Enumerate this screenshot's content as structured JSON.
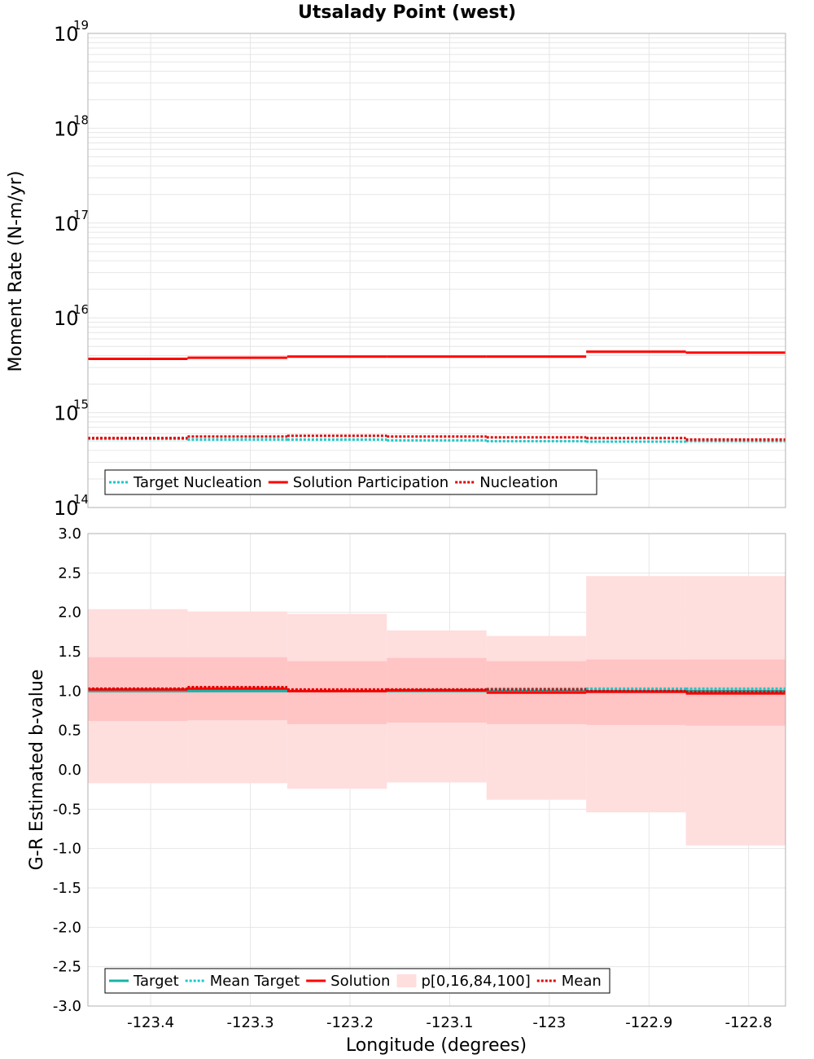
{
  "title": "Utsalady Point (west)",
  "colors": {
    "target": "#17b3a8",
    "mean_target": "#1ec8c8",
    "solution": "#ff0000",
    "mean": "#e00000",
    "band_outer": "#ffdede",
    "band_inner": "#ffc4c4",
    "grid": "#e6e6e6",
    "frame": "#b0b0b0"
  },
  "chart_data": [
    {
      "type": "line",
      "step": true,
      "ylabel": "Moment Rate (N-m/yr)",
      "yscale": "log",
      "ylim": [
        100000000000000.0,
        1e+19
      ],
      "yticks": [
        {
          "base": "10",
          "exp": "14"
        },
        {
          "base": "10",
          "exp": "15"
        },
        {
          "base": "10",
          "exp": "16"
        },
        {
          "base": "10",
          "exp": "17"
        },
        {
          "base": "10",
          "exp": "18"
        },
        {
          "base": "10",
          "exp": "19"
        }
      ],
      "bin_edges": [
        -123.463,
        -123.363,
        -123.263,
        -123.163,
        -123.063,
        -122.963,
        -122.863,
        -122.763
      ],
      "series": [
        {
          "name": "Target Nucleation",
          "style": "dotted",
          "color_key": "mean_target",
          "values": [
            530000000000000.0,
            520000000000000.0,
            520000000000000.0,
            510000000000000.0,
            500000000000000.0,
            495000000000000.0,
            500000000000000.0
          ]
        },
        {
          "name": "Solution Participation",
          "style": "solid",
          "color_key": "solution",
          "values": [
            3700000000000000.0,
            3800000000000000.0,
            3900000000000000.0,
            3900000000000000.0,
            3900000000000000.0,
            4400000000000000.0,
            4300000000000000.0
          ]
        },
        {
          "name": "Nucleation",
          "style": "dotted",
          "color_key": "mean",
          "values": [
            540000000000000.0,
            560000000000000.0,
            570000000000000.0,
            560000000000000.0,
            550000000000000.0,
            540000000000000.0,
            520000000000000.0
          ]
        }
      ],
      "legend": {
        "position": "bottom-left",
        "entries": [
          {
            "label": "Target Nucleation",
            "style": "dotted",
            "color_key": "mean_target"
          },
          {
            "label": "Solution Participation",
            "style": "solid",
            "color_key": "solution"
          },
          {
            "label": "Nucleation",
            "style": "dotted",
            "color_key": "mean"
          }
        ]
      }
    },
    {
      "type": "line",
      "step": true,
      "xlabel": "Longitude (degrees)",
      "ylabel": "G-R Estimated b-value",
      "ylim": [
        -3.0,
        3.0
      ],
      "yticks": [
        "-3.0",
        "-2.5",
        "-2.0",
        "-1.5",
        "-1.0",
        "-0.5",
        "0.0",
        "0.5",
        "1.0",
        "1.5",
        "2.0",
        "2.5",
        "3.0"
      ],
      "xlim": [
        -123.463,
        -122.763
      ],
      "xticks": [
        {
          "value": -123.4,
          "label": "-123.4"
        },
        {
          "value": -123.3,
          "label": "-123.3"
        },
        {
          "value": -123.2,
          "label": "-123.2"
        },
        {
          "value": -123.1,
          "label": "-123.1"
        },
        {
          "value": -123.0,
          "label": "-123"
        },
        {
          "value": -122.9,
          "label": "-122.9"
        },
        {
          "value": -122.8,
          "label": "-122.8"
        }
      ],
      "bin_edges": [
        -123.463,
        -123.363,
        -123.263,
        -123.163,
        -123.063,
        -122.963,
        -122.863,
        -122.763
      ],
      "band": {
        "name": "p[0,16,84,100]",
        "p0": [
          -0.17,
          -0.17,
          -0.24,
          -0.16,
          -0.38,
          -0.54,
          -0.96
        ],
        "p16": [
          0.62,
          0.63,
          0.58,
          0.6,
          0.58,
          0.57,
          0.56
        ],
        "p84": [
          1.43,
          1.43,
          1.38,
          1.42,
          1.38,
          1.4,
          1.4
        ],
        "p100": [
          2.04,
          2.01,
          1.98,
          1.77,
          1.7,
          2.46,
          2.46
        ]
      },
      "series": [
        {
          "name": "Target",
          "style": "solid",
          "color_key": "target",
          "values": [
            1.0,
            1.0,
            1.0,
            1.0,
            1.0,
            1.0,
            1.0
          ]
        },
        {
          "name": "Mean Target",
          "style": "dotted",
          "color_key": "mean_target",
          "values": [
            1.02,
            1.03,
            1.01,
            1.02,
            1.03,
            1.03,
            1.03
          ]
        },
        {
          "name": "Solution",
          "style": "solid",
          "color_key": "solution",
          "values": [
            1.02,
            1.03,
            1.0,
            1.01,
            0.98,
            0.99,
            0.97
          ]
        },
        {
          "name": "Mean",
          "style": "dotted",
          "color_key": "mean",
          "values": [
            1.03,
            1.05,
            1.02,
            1.02,
            1.02,
            1.0,
            0.99
          ]
        }
      ],
      "legend": {
        "position": "bottom-left",
        "entries": [
          {
            "label": "Target",
            "style": "solid",
            "color_key": "target"
          },
          {
            "label": "Mean Target",
            "style": "dotted",
            "color_key": "mean_target"
          },
          {
            "label": "Solution",
            "style": "solid",
            "color_key": "solution"
          },
          {
            "label": "p[0,16,84,100]",
            "style": "box",
            "color_key": "band_outer"
          },
          {
            "label": "Mean",
            "style": "dotted",
            "color_key": "mean"
          }
        ]
      }
    }
  ]
}
